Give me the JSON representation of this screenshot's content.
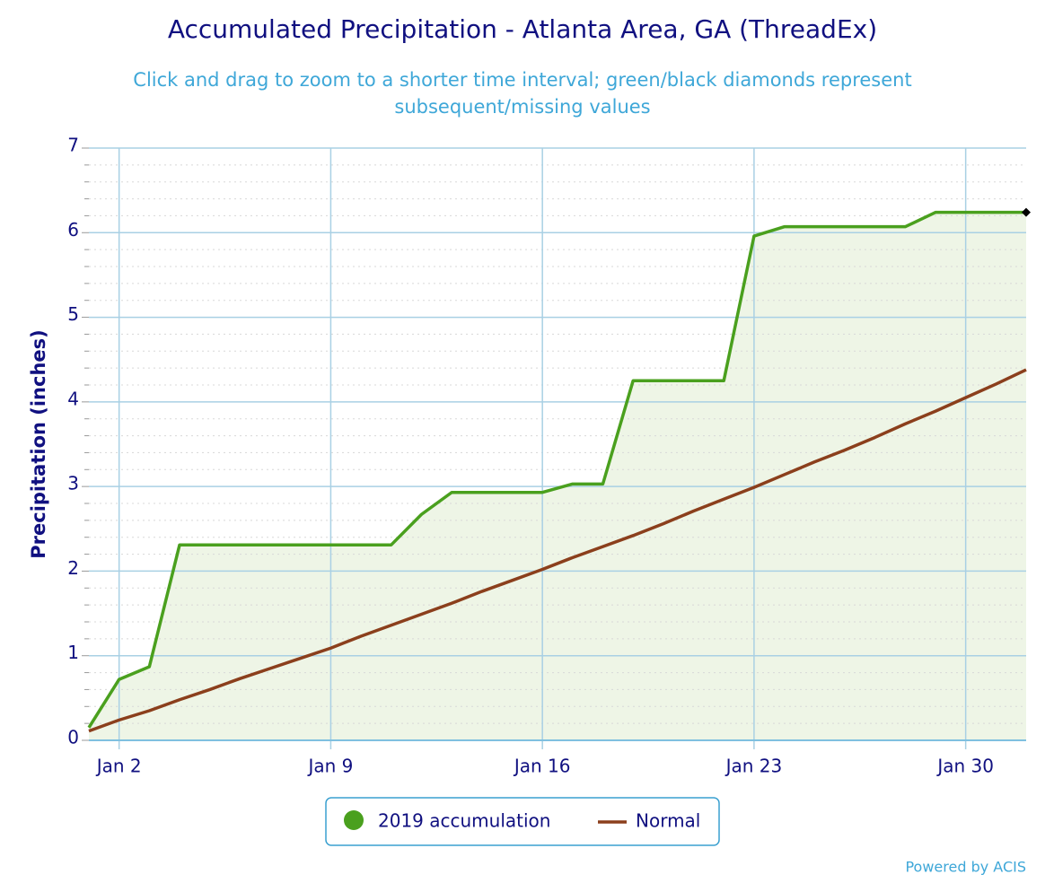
{
  "chart_data": {
    "type": "line",
    "title": "Accumulated Precipitation - Atlanta Area, GA (ThreadEx)",
    "subtitle": "Click and drag to zoom to a shorter time interval; green/black diamonds represent subsequent/missing values",
    "ylabel": "Precipitation (inches)",
    "categories": [
      null,
      "Jan 2",
      null,
      null,
      null,
      null,
      null,
      null,
      "Jan 9",
      null,
      null,
      null,
      null,
      null,
      null,
      "Jan 16",
      null,
      null,
      null,
      null,
      null,
      null,
      "Jan 23",
      null,
      null,
      null,
      null,
      null,
      null,
      "Jan 30",
      null,
      null
    ],
    "series": [
      {
        "name": "2019 accumulation",
        "color": "#4aa01e",
        "fill": "#eef5e6",
        "values": [
          0.15,
          0.72,
          0.87,
          2.31,
          2.31,
          2.31,
          2.31,
          2.31,
          2.31,
          2.31,
          2.31,
          2.67,
          2.93,
          2.93,
          2.93,
          2.93,
          3.03,
          3.03,
          4.25,
          4.25,
          4.25,
          4.25,
          5.96,
          6.07,
          6.07,
          6.07,
          6.07,
          6.07,
          6.24,
          6.24,
          6.24,
          6.24
        ]
      },
      {
        "name": "Normal",
        "color": "#8b3f1c",
        "values": [
          0.11,
          0.24,
          0.35,
          0.48,
          0.6,
          0.73,
          0.85,
          0.97,
          1.09,
          1.23,
          1.36,
          1.49,
          1.62,
          1.76,
          1.89,
          2.02,
          2.16,
          2.29,
          2.42,
          2.56,
          2.71,
          2.85,
          2.99,
          3.14,
          3.29,
          3.43,
          3.58,
          3.74,
          3.89,
          4.05,
          4.21,
          4.38
        ]
      }
    ],
    "ylim": [
      0,
      7
    ],
    "yticks": [
      0,
      1,
      2,
      3,
      4,
      5,
      6,
      7
    ],
    "minor_yticks": [
      0.2,
      0.4,
      0.6,
      0.8,
      1.2,
      1.4,
      1.6,
      1.8,
      2.2,
      2.4,
      2.6,
      2.8,
      3.2,
      3.4,
      3.6,
      3.8,
      4.2,
      4.4,
      4.6,
      4.8,
      5.2,
      5.4,
      5.6,
      5.8,
      6.2,
      6.4,
      6.6,
      6.8
    ],
    "grid": true,
    "credit": "Powered by ACIS"
  }
}
